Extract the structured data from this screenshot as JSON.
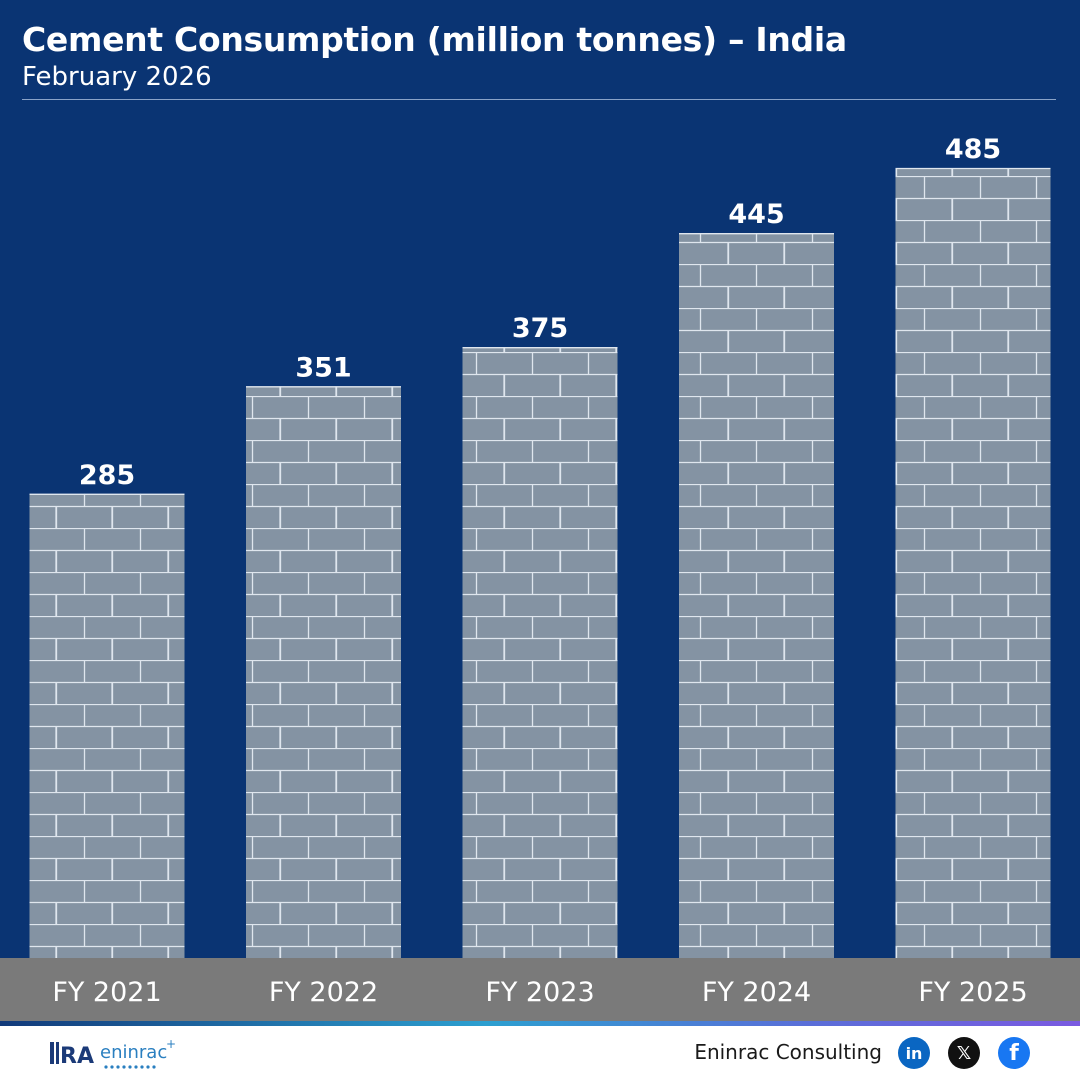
{
  "header": {
    "title": "Cement Consumption (million tonnes) – India",
    "subtitle": "February 2026"
  },
  "chart_data": {
    "type": "bar",
    "title": "Cement Consumption (million tonnes) – India",
    "subtitle": "February 2026",
    "categories": [
      "FY 2021",
      "FY 2022",
      "FY 2023",
      "FY 2024",
      "FY 2025"
    ],
    "values": [
      285,
      351,
      375,
      445,
      485
    ],
    "data_labels": [
      "285",
      "351",
      "375",
      "445",
      "485"
    ],
    "ylim": [
      0,
      520
    ],
    "grid": false,
    "legend": "none",
    "bar_style": "brick-pattern"
  },
  "footer": {
    "brand": "Eninrac Consulting",
    "logo_text": "eninrac",
    "logo_mark": "RA"
  },
  "colors": {
    "background": "#0a3473",
    "bar": "#8493a3",
    "mortar": "#dfe6ee",
    "axis_band": "#7a7a7a",
    "label": "#ffffff"
  },
  "icons": [
    "linkedin-icon",
    "x-twitter-icon",
    "facebook-icon"
  ]
}
